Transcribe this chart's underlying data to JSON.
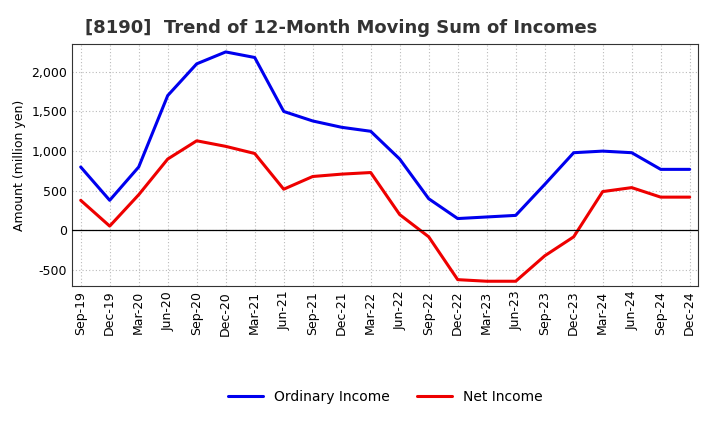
{
  "title": "[8190]  Trend of 12-Month Moving Sum of Incomes",
  "ylabel": "Amount (million yen)",
  "x_labels": [
    "Sep-19",
    "Dec-19",
    "Mar-20",
    "Jun-20",
    "Sep-20",
    "Dec-20",
    "Mar-21",
    "Jun-21",
    "Sep-21",
    "Dec-21",
    "Mar-22",
    "Jun-22",
    "Sep-22",
    "Dec-22",
    "Mar-23",
    "Jun-23",
    "Sep-23",
    "Dec-23",
    "Mar-24",
    "Jun-24",
    "Sep-24",
    "Dec-24"
  ],
  "ordinary_income": [
    800,
    380,
    800,
    1700,
    2100,
    2250,
    2180,
    1500,
    1380,
    1300,
    1250,
    900,
    400,
    150,
    170,
    190,
    580,
    980,
    1000,
    980,
    770,
    770
  ],
  "net_income": [
    380,
    55,
    450,
    900,
    1130,
    1060,
    970,
    520,
    680,
    710,
    730,
    200,
    -80,
    -620,
    -640,
    -640,
    -320,
    -80,
    490,
    540,
    420,
    420
  ],
  "ordinary_color": "#0000EE",
  "net_color": "#EE0000",
  "bg_color": "#FFFFFF",
  "plot_bg_color": "#FFFFFF",
  "ylim": [
    -700,
    2350
  ],
  "yticks": [
    -500,
    0,
    500,
    1000,
    1500,
    2000
  ],
  "grid_color": "#BBBBBB",
  "title_fontsize": 13,
  "axis_fontsize": 9,
  "tick_fontsize": 9,
  "legend_fontsize": 10,
  "line_width": 2.2
}
